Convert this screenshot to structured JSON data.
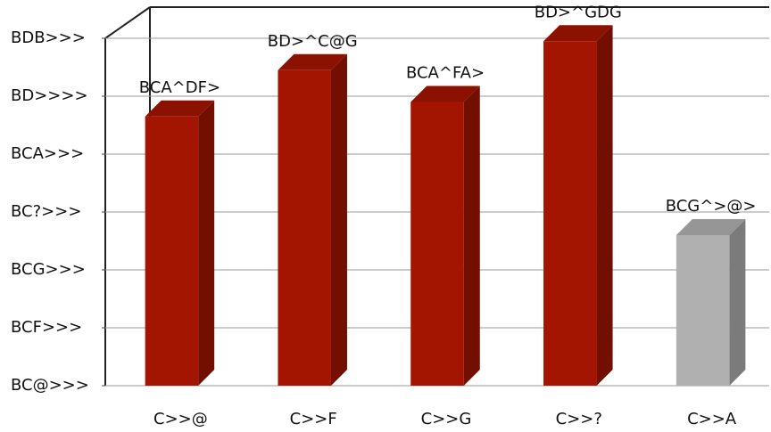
{
  "chart_data": {
    "type": "bar",
    "categories": [
      "C>>@",
      "C>>F",
      "C>>G",
      "C>>?",
      "C>>A"
    ],
    "values": [
      4.65,
      5.45,
      4.9,
      5.95,
      2.6
    ],
    "value_labels": [
      "BCA^DF>",
      "BD>^C@G",
      "BCA^FA>",
      "BD>^GDG",
      "BCG^>@>"
    ],
    "colors": [
      "#a31500",
      "#a31500",
      "#a31500",
      "#a31500",
      "#b0b0b0"
    ],
    "ylim": [
      0,
      6
    ],
    "yticks": [
      {
        "value": 0,
        "label": "BC@>>>"
      },
      {
        "value": 1,
        "label": "BCF>>>"
      },
      {
        "value": 2,
        "label": "BCG>>>"
      },
      {
        "value": 3,
        "label": "BC?>>>"
      },
      {
        "value": 4,
        "label": "BCA>>>"
      },
      {
        "value": 5,
        "label": "BD>>>>"
      },
      {
        "value": 6,
        "label": "BDB>>>"
      }
    ],
    "grid": true
  }
}
